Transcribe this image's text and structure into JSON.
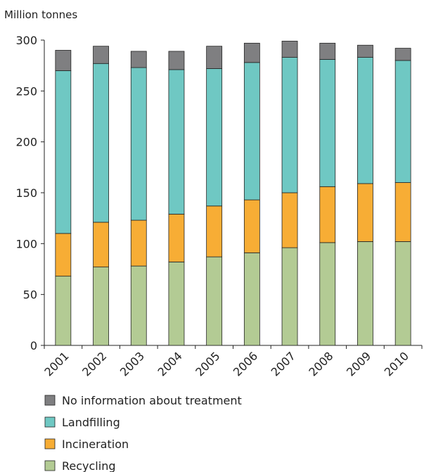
{
  "chart_data": {
    "type": "bar",
    "stacked": true,
    "ylabel": "Million tonnes",
    "ylim": [
      0,
      300
    ],
    "yticks": [
      0,
      50,
      100,
      150,
      200,
      250,
      300
    ],
    "grid": false,
    "legend_position": "bottom",
    "categories": [
      "2001",
      "2002",
      "2003",
      "2004",
      "2005",
      "2006",
      "2007",
      "2008",
      "2009",
      "2010"
    ],
    "series": [
      {
        "name": "Recycling",
        "color": "#b3cb94",
        "values": [
          68,
          77,
          78,
          82,
          87,
          91,
          96,
          101,
          102,
          102
        ]
      },
      {
        "name": "Incineration",
        "color": "#f7ad35",
        "values": [
          42,
          44,
          45,
          47,
          50,
          52,
          54,
          55,
          57,
          58
        ]
      },
      {
        "name": "Landfilling",
        "color": "#6fc8c3",
        "values": [
          160,
          156,
          150,
          142,
          135,
          135,
          133,
          125,
          124,
          120
        ]
      },
      {
        "name": "No information about treatment",
        "color": "#7f7f81",
        "values": [
          20,
          17,
          16,
          18,
          22,
          19,
          16,
          16,
          12,
          12
        ]
      }
    ]
  }
}
